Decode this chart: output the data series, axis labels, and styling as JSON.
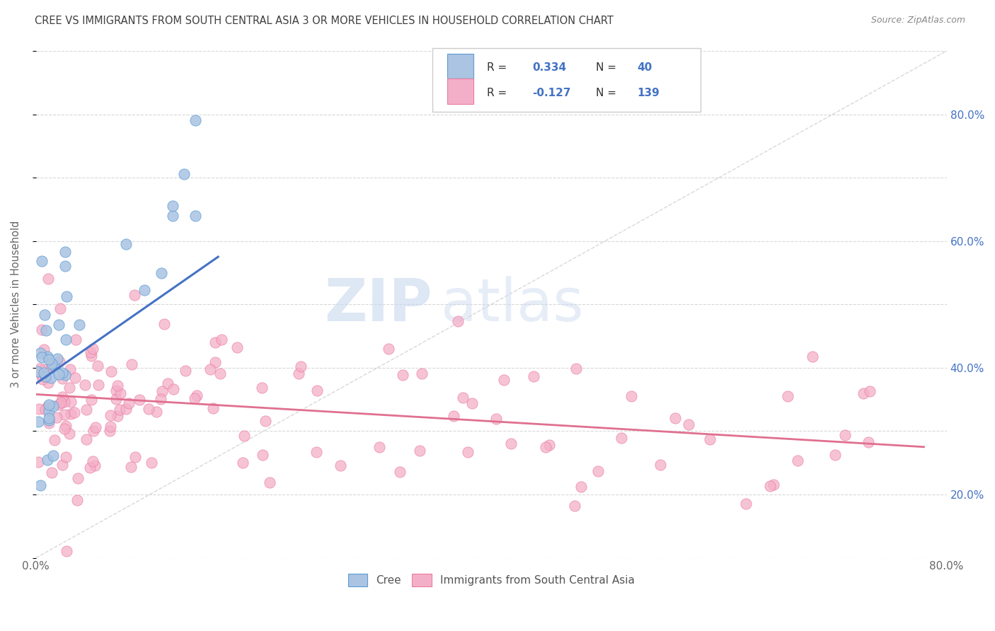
{
  "title": "CREE VS IMMIGRANTS FROM SOUTH CENTRAL ASIA 3 OR MORE VEHICLES IN HOUSEHOLD CORRELATION CHART",
  "source": "Source: ZipAtlas.com",
  "ylabel": "3 or more Vehicles in Household",
  "xmin": 0.0,
  "xmax": 0.8,
  "ymin": 0.0,
  "ymax": 0.8,
  "watermark_zip": "ZIP",
  "watermark_atlas": "atlas",
  "cree_R": 0.334,
  "cree_N": 40,
  "immig_R": -0.127,
  "immig_N": 139,
  "cree_color": "#aac4e2",
  "cree_edge_color": "#5b9bd5",
  "immig_color": "#f4afc8",
  "immig_edge_color": "#e87ca0",
  "cree_line_color": "#4472c4",
  "immig_line_color": "#e07090",
  "diagonal_color": "#c8c8c8",
  "grid_color": "#d8d8d8",
  "background_color": "#ffffff",
  "title_color": "#404040",
  "legend_text_color": "#333333",
  "legend_value_color": "#4472c4",
  "right_axis_color": "#4472c4",
  "ylabel_color": "#666666",
  "xtick_color": "#666666",
  "source_color": "#888888"
}
